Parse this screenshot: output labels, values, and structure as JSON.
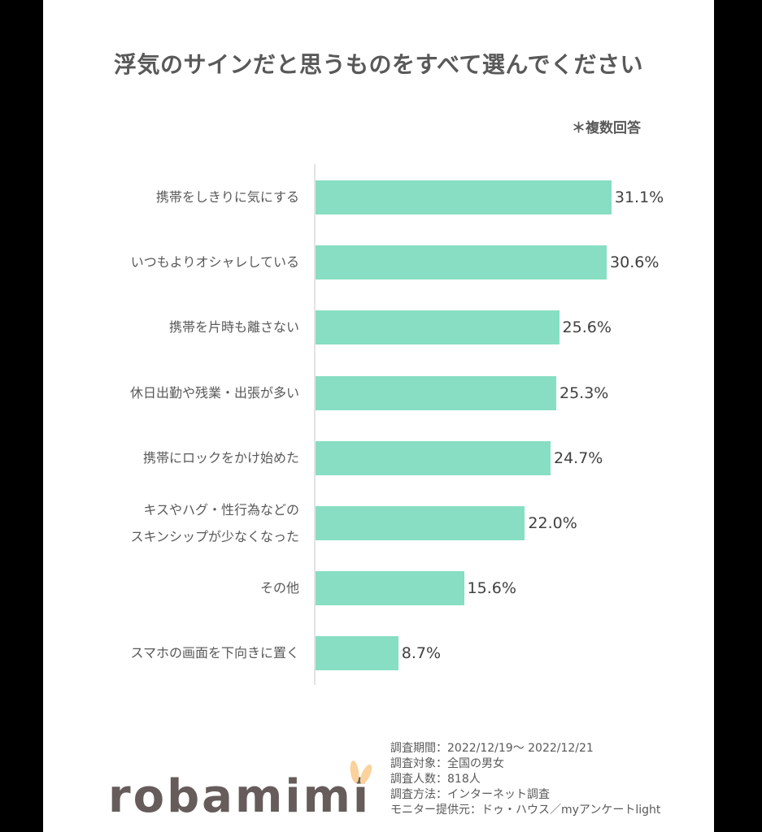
{
  "title": "浮気のサインだと思うものをすべて選んでください",
  "note": "＊複数回答",
  "chart_data": {
    "type": "bar",
    "orientation": "horizontal",
    "title": "浮気のサインだと思うものをすべて選んでください",
    "subtitle": "＊複数回答",
    "xlabel": "",
    "ylabel": "",
    "unit": "%",
    "grid": false,
    "legend": null,
    "categories": [
      "携帯をしきりに気にする",
      "いつもよりオシャレしている",
      "携帯を片時も離さない",
      "休日出勤や残業・出張が多い",
      "携帯にロックをかけ始めた",
      "キスやハグ・性行為などのスキンシップが少なくなった",
      "その他",
      "スマホの画面を下向きに置く"
    ],
    "values": [
      31.1,
      30.6,
      25.6,
      25.3,
      24.7,
      22.0,
      15.6,
      8.7
    ],
    "bar_color": "#88dec2"
  },
  "rows": [
    {
      "label": "携帯をしきりに気にする",
      "label2": "",
      "value": "31.1%"
    },
    {
      "label": "いつもよりオシャレしている",
      "label2": "",
      "value": "30.6%"
    },
    {
      "label": "携帯を片時も離さない",
      "label2": "",
      "value": "25.6%"
    },
    {
      "label": "休日出勤や残業・出張が多い",
      "label2": "",
      "value": "25.3%"
    },
    {
      "label": "携帯にロックをかけ始めた",
      "label2": "",
      "value": "24.7%"
    },
    {
      "label": "キスやハグ・性行為などの",
      "label2": "スキンシップが少なくなった",
      "value": "22.0%"
    },
    {
      "label": "その他",
      "label2": "",
      "value": "15.6%"
    },
    {
      "label": "スマホの画面を下向きに置く",
      "label2": "",
      "value": "8.7%"
    }
  ],
  "survey": {
    "period": "調査期間：2022/12/19～ 2022/12/21",
    "target": "調査対象：全国の男女",
    "count": "調査人数：818人",
    "method": "調査方法：インターネット調査",
    "provider": "モニター提供元：ドゥ・ハウス／myアンケートlight"
  },
  "logo": "robamimi"
}
